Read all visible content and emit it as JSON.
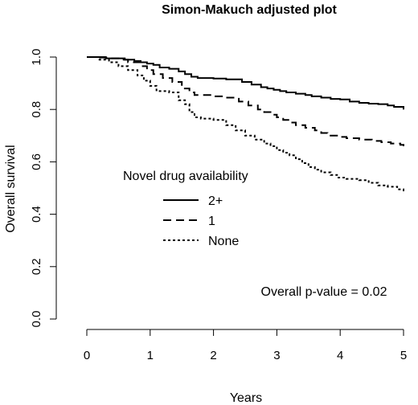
{
  "chart_data": {
    "type": "line",
    "step": true,
    "title": "Simon-Makuch adjusted plot",
    "xlabel": "Years",
    "ylabel": "Overall survival",
    "xlim": [
      0,
      5
    ],
    "ylim": [
      0,
      1
    ],
    "x_ticks": [
      0,
      1,
      2,
      3,
      4,
      5
    ],
    "x_tick_labels": [
      "0",
      "1",
      "2",
      "3",
      "4",
      "5"
    ],
    "y_ticks": [
      0.0,
      0.2,
      0.4,
      0.6,
      0.8,
      1.0
    ],
    "y_tick_labels": [
      "0.0",
      "0.2",
      "0.4",
      "0.6",
      "0.8",
      "1.0"
    ],
    "grid": false,
    "legend": {
      "title": "Novel drug availability",
      "position": "center-left"
    },
    "annotation": "Overall p-value = 0.02",
    "series": [
      {
        "name": "2+",
        "line_style": "solid",
        "x": [
          0,
          0.3,
          0.6,
          0.75,
          0.85,
          0.95,
          1.05,
          1.15,
          1.3,
          1.45,
          1.55,
          1.65,
          1.75,
          2.0,
          2.2,
          2.45,
          2.6,
          2.75,
          2.85,
          2.95,
          3.05,
          3.15,
          3.3,
          3.45,
          3.55,
          3.7,
          3.85,
          4.0,
          4.15,
          4.3,
          4.45,
          4.6,
          4.75,
          4.85,
          5.0
        ],
        "y": [
          1.0,
          0.995,
          0.99,
          0.985,
          0.98,
          0.975,
          0.97,
          0.96,
          0.955,
          0.945,
          0.935,
          0.925,
          0.92,
          0.918,
          0.915,
          0.905,
          0.895,
          0.885,
          0.88,
          0.875,
          0.87,
          0.865,
          0.86,
          0.855,
          0.85,
          0.845,
          0.84,
          0.838,
          0.83,
          0.825,
          0.822,
          0.82,
          0.815,
          0.81,
          0.8
        ]
      },
      {
        "name": "1",
        "line_style": "dashed",
        "x": [
          0,
          0.15,
          0.35,
          0.5,
          0.65,
          0.85,
          0.95,
          1.05,
          1.2,
          1.35,
          1.5,
          1.62,
          1.7,
          2.0,
          2.2,
          2.4,
          2.55,
          2.7,
          2.8,
          2.9,
          3.0,
          3.1,
          3.2,
          3.3,
          3.45,
          3.6,
          3.7,
          3.8,
          3.95,
          4.1,
          4.3,
          4.5,
          4.65,
          4.8,
          4.95,
          5.0
        ],
        "y": [
          1.0,
          0.998,
          0.995,
          0.99,
          0.98,
          0.965,
          0.95,
          0.935,
          0.92,
          0.905,
          0.88,
          0.865,
          0.855,
          0.85,
          0.845,
          0.83,
          0.815,
          0.8,
          0.79,
          0.78,
          0.77,
          0.76,
          0.75,
          0.74,
          0.73,
          0.72,
          0.71,
          0.7,
          0.695,
          0.69,
          0.685,
          0.68,
          0.675,
          0.67,
          0.665,
          0.66
        ]
      },
      {
        "name": "None",
        "line_style": "dotted",
        "x": [
          0,
          0.2,
          0.35,
          0.5,
          0.65,
          0.8,
          0.9,
          1.0,
          1.1,
          1.3,
          1.45,
          1.55,
          1.62,
          1.7,
          1.8,
          2.0,
          2.2,
          2.35,
          2.5,
          2.65,
          2.8,
          2.9,
          3.0,
          3.1,
          3.2,
          3.3,
          3.4,
          3.5,
          3.6,
          3.7,
          3.85,
          3.95,
          4.1,
          4.3,
          4.45,
          4.6,
          4.75,
          4.9,
          5.0
        ],
        "y": [
          1.0,
          0.99,
          0.98,
          0.965,
          0.95,
          0.93,
          0.91,
          0.89,
          0.87,
          0.865,
          0.835,
          0.82,
          0.79,
          0.77,
          0.765,
          0.76,
          0.74,
          0.72,
          0.7,
          0.685,
          0.67,
          0.66,
          0.645,
          0.635,
          0.625,
          0.61,
          0.595,
          0.58,
          0.57,
          0.56,
          0.55,
          0.54,
          0.535,
          0.53,
          0.52,
          0.51,
          0.505,
          0.495,
          0.485
        ]
      }
    ]
  }
}
